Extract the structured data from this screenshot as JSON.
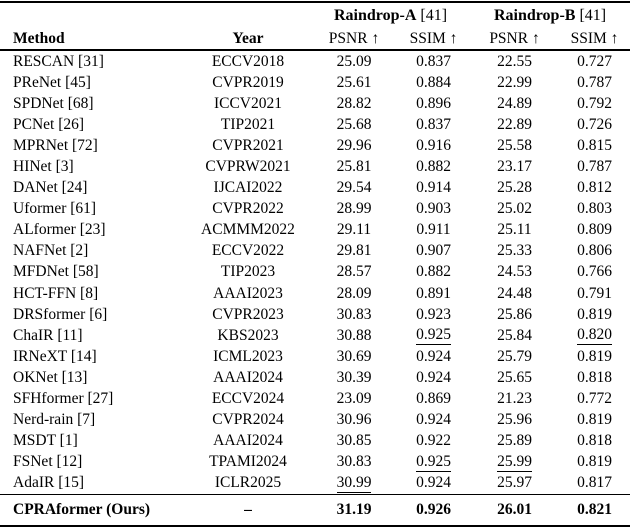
{
  "header": {
    "method_label": "Method",
    "year_label": "Year",
    "psnr_label": "PSNR ↑",
    "ssim_label": "SSIM ↑",
    "groups": [
      {
        "name": "Raindrop-A",
        "ref": " [41]"
      },
      {
        "name": "Raindrop-B",
        "ref": " [41]"
      }
    ]
  },
  "rows": [
    {
      "method": "RESCAN [31]",
      "year": "ECCV2018",
      "values": [
        "25.09",
        "0.837",
        "22.55",
        "0.727"
      ],
      "underline": [
        0,
        0,
        0,
        0
      ]
    },
    {
      "method": "PReNet [45]",
      "year": "CVPR2019",
      "values": [
        "25.61",
        "0.884",
        "22.99",
        "0.787"
      ],
      "underline": [
        0,
        0,
        0,
        0
      ]
    },
    {
      "method": "SPDNet [68]",
      "year": "ICCV2021",
      "values": [
        "28.82",
        "0.896",
        "24.89",
        "0.792"
      ],
      "underline": [
        0,
        0,
        0,
        0
      ]
    },
    {
      "method": "PCNet [26]",
      "year": "TIP2021",
      "values": [
        "25.68",
        "0.837",
        "22.89",
        "0.726"
      ],
      "underline": [
        0,
        0,
        0,
        0
      ]
    },
    {
      "method": "MPRNet [72]",
      "year": "CVPR2021",
      "values": [
        "29.96",
        "0.916",
        "25.58",
        "0.815"
      ],
      "underline": [
        0,
        0,
        0,
        0
      ]
    },
    {
      "method": "HINet [3]",
      "year": "CVPRW2021",
      "values": [
        "25.81",
        "0.882",
        "23.17",
        "0.787"
      ],
      "underline": [
        0,
        0,
        0,
        0
      ]
    },
    {
      "method": "DANet [24]",
      "year": "IJCAI2022",
      "values": [
        "29.54",
        "0.914",
        "25.28",
        "0.812"
      ],
      "underline": [
        0,
        0,
        0,
        0
      ]
    },
    {
      "method": "Uformer [61]",
      "year": "CVPR2022",
      "values": [
        "28.99",
        "0.903",
        "25.02",
        "0.803"
      ],
      "underline": [
        0,
        0,
        0,
        0
      ]
    },
    {
      "method": "ALformer [23]",
      "year": "ACMMM2022",
      "values": [
        "29.11",
        "0.911",
        "25.11",
        "0.809"
      ],
      "underline": [
        0,
        0,
        0,
        0
      ]
    },
    {
      "method": "NAFNet [2]",
      "year": "ECCV2022",
      "values": [
        "29.81",
        "0.907",
        "25.33",
        "0.806"
      ],
      "underline": [
        0,
        0,
        0,
        0
      ]
    },
    {
      "method": "MFDNet [58]",
      "year": "TIP2023",
      "values": [
        "28.57",
        "0.882",
        "24.53",
        "0.766"
      ],
      "underline": [
        0,
        0,
        0,
        0
      ]
    },
    {
      "method": "HCT-FFN [8]",
      "year": "AAAI2023",
      "values": [
        "28.09",
        "0.891",
        "24.48",
        "0.791"
      ],
      "underline": [
        0,
        0,
        0,
        0
      ]
    },
    {
      "method": "DRSformer [6]",
      "year": "CVPR2023",
      "values": [
        "30.83",
        "0.923",
        "25.86",
        "0.819"
      ],
      "underline": [
        0,
        0,
        0,
        0
      ]
    },
    {
      "method": "ChaIR [11]",
      "year": "KBS2023",
      "values": [
        "30.88",
        "0.925",
        "25.84",
        "0.820"
      ],
      "underline": [
        0,
        1,
        0,
        1
      ]
    },
    {
      "method": "IRNeXT [14]",
      "year": "ICML2023",
      "values": [
        "30.69",
        "0.924",
        "25.79",
        "0.819"
      ],
      "underline": [
        0,
        0,
        0,
        0
      ]
    },
    {
      "method": "OKNet [13]",
      "year": "AAAI2024",
      "values": [
        "30.39",
        "0.924",
        "25.65",
        "0.818"
      ],
      "underline": [
        0,
        0,
        0,
        0
      ]
    },
    {
      "method": "SFHformer [27]",
      "year": "ECCV2024",
      "values": [
        "23.09",
        "0.869",
        "21.23",
        "0.772"
      ],
      "underline": [
        0,
        0,
        0,
        0
      ]
    },
    {
      "method": "Nerd-rain [7]",
      "year": "CVPR2024",
      "values": [
        "30.96",
        "0.924",
        "25.96",
        "0.819"
      ],
      "underline": [
        0,
        0,
        0,
        0
      ]
    },
    {
      "method": "MSDT [1]",
      "year": "AAAI2024",
      "values": [
        "30.85",
        "0.922",
        "25.89",
        "0.818"
      ],
      "underline": [
        0,
        0,
        0,
        0
      ]
    },
    {
      "method": "FSNet [12]",
      "year": "TPAMI2024",
      "values": [
        "30.83",
        "0.925",
        "25.99",
        "0.819"
      ],
      "underline": [
        0,
        1,
        1,
        0
      ]
    },
    {
      "method": "AdaIR [15]",
      "year": "ICLR2025",
      "values": [
        "30.99",
        "0.924",
        "25.97",
        "0.817"
      ],
      "underline": [
        1,
        0,
        0,
        0
      ]
    }
  ],
  "final_row": {
    "method": "CPRAformer (Ours)",
    "year": "–",
    "values": [
      "31.19",
      "0.926",
      "26.01",
      "0.821"
    ]
  }
}
